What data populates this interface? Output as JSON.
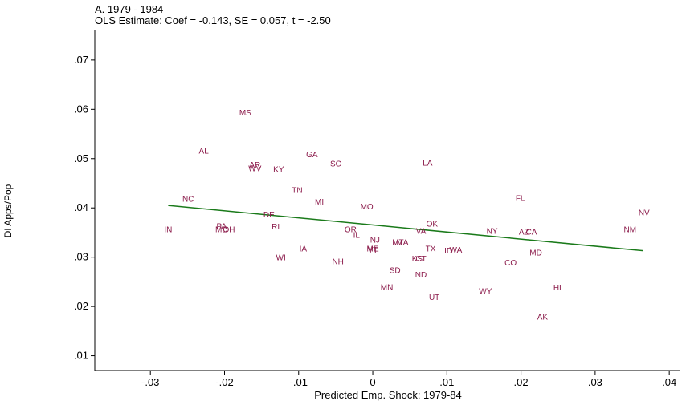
{
  "title": "A. 1979 - 1984",
  "subtitle": "OLS Estimate: Coef = -0.143, SE = 0.057, t = -2.50",
  "colors": {
    "points": "#8b1a4a",
    "fit_line": "#1a7a1a",
    "axis": "#000000"
  },
  "chart_data": {
    "type": "scatter",
    "title": "A. 1979 - 1984",
    "subtitle": "OLS Estimate: Coef = -0.143, SE = 0.057, t = -2.50",
    "xlabel": "Predicted Emp. Shock: 1979-84",
    "ylabel": "DI Apps/Pop",
    "xlim": [
      -0.0375,
      0.0415
    ],
    "ylim": [
      0.007,
      0.076
    ],
    "x_ticks": [
      -0.03,
      -0.02,
      -0.01,
      0,
      0.01,
      0.02,
      0.03,
      0.04
    ],
    "x_tick_labels": [
      "-.03",
      "-.02",
      "-.01",
      "0",
      ".01",
      ".02",
      ".03",
      ".04"
    ],
    "y_ticks": [
      0.01,
      0.02,
      0.03,
      0.04,
      0.05,
      0.06,
      0.07
    ],
    "y_tick_labels": [
      ".01",
      ".02",
      ".03",
      ".04",
      ".05",
      ".06",
      ".07"
    ],
    "grid": false,
    "fit_line": {
      "x": [
        -0.0276,
        0.0365
      ],
      "y": [
        0.0405,
        0.0313
      ]
    },
    "points": [
      {
        "label": "MS",
        "x": -0.0172,
        "y": 0.0594
      },
      {
        "label": "AL",
        "x": -0.0228,
        "y": 0.0517
      },
      {
        "label": "GA",
        "x": -0.0082,
        "y": 0.0509
      },
      {
        "label": "SC",
        "x": -0.005,
        "y": 0.0491
      },
      {
        "label": "LA",
        "x": 0.0074,
        "y": 0.0492
      },
      {
        "label": "AR",
        "x": -0.0159,
        "y": 0.0488
      },
      {
        "label": "WV",
        "x": -0.0159,
        "y": 0.0481
      },
      {
        "label": "KY",
        "x": -0.0127,
        "y": 0.0479
      },
      {
        "label": "TN",
        "x": -0.0102,
        "y": 0.0437
      },
      {
        "label": "NC",
        "x": -0.0249,
        "y": 0.0419
      },
      {
        "label": "FL",
        "x": 0.0199,
        "y": 0.0421
      },
      {
        "label": "MI",
        "x": -0.0072,
        "y": 0.0413
      },
      {
        "label": "MO",
        "x": -0.0008,
        "y": 0.0404
      },
      {
        "label": "NV",
        "x": 0.0366,
        "y": 0.0391
      },
      {
        "label": "DE",
        "x": -0.014,
        "y": 0.0387
      },
      {
        "label": "OK",
        "x": 0.008,
        "y": 0.0369
      },
      {
        "label": "PA",
        "x": -0.0204,
        "y": 0.0364
      },
      {
        "label": "RI",
        "x": -0.0131,
        "y": 0.0363
      },
      {
        "label": "IN",
        "x": -0.0276,
        "y": 0.0357
      },
      {
        "label": "MD",
        "x": -0.0204,
        "y": 0.0357
      },
      {
        "label": "OH",
        "x": -0.0194,
        "y": 0.0357
      },
      {
        "label": "OR",
        "x": -0.003,
        "y": 0.0357
      },
      {
        "label": "NM",
        "x": 0.0347,
        "y": 0.0357
      },
      {
        "label": "VA",
        "x": 0.0065,
        "y": 0.0354
      },
      {
        "label": "NY",
        "x": 0.0161,
        "y": 0.0354
      },
      {
        "label": "AZ",
        "x": 0.0204,
        "y": 0.0352
      },
      {
        "label": "CA",
        "x": 0.0214,
        "y": 0.0352
      },
      {
        "label": "IL",
        "x": -0.0022,
        "y": 0.0346
      },
      {
        "label": "NJ",
        "x": 0.0003,
        "y": 0.0336
      },
      {
        "label": "MT",
        "x": 0.0034,
        "y": 0.0331
      },
      {
        "label": "MA",
        "x": 0.004,
        "y": 0.0331
      },
      {
        "label": "TX",
        "x": 0.0078,
        "y": 0.0318
      },
      {
        "label": "IA",
        "x": -0.0094,
        "y": 0.0318
      },
      {
        "label": "ME",
        "x": 0.0,
        "y": 0.0318
      },
      {
        "label": "VT",
        "x": 0.0,
        "y": 0.0316
      },
      {
        "label": "ID",
        "x": 0.0102,
        "y": 0.0314
      },
      {
        "label": "WA",
        "x": 0.0112,
        "y": 0.0316
      },
      {
        "label": "MD",
        "x": 0.022,
        "y": 0.031
      },
      {
        "label": "WI",
        "x": -0.0124,
        "y": 0.03
      },
      {
        "label": "KS",
        "x": 0.006,
        "y": 0.0298
      },
      {
        "label": "CT",
        "x": 0.0065,
        "y": 0.0298
      },
      {
        "label": "NH",
        "x": -0.0047,
        "y": 0.0292
      },
      {
        "label": "CO",
        "x": 0.0186,
        "y": 0.029
      },
      {
        "label": "SD",
        "x": 0.003,
        "y": 0.0274
      },
      {
        "label": "ND",
        "x": 0.0065,
        "y": 0.0265
      },
      {
        "label": "MN",
        "x": 0.0019,
        "y": 0.024
      },
      {
        "label": "HI",
        "x": 0.0249,
        "y": 0.0239
      },
      {
        "label": "WY",
        "x": 0.0152,
        "y": 0.0232
      },
      {
        "label": "UT",
        "x": 0.0083,
        "y": 0.022
      },
      {
        "label": "AK",
        "x": 0.0229,
        "y": 0.018
      }
    ]
  }
}
